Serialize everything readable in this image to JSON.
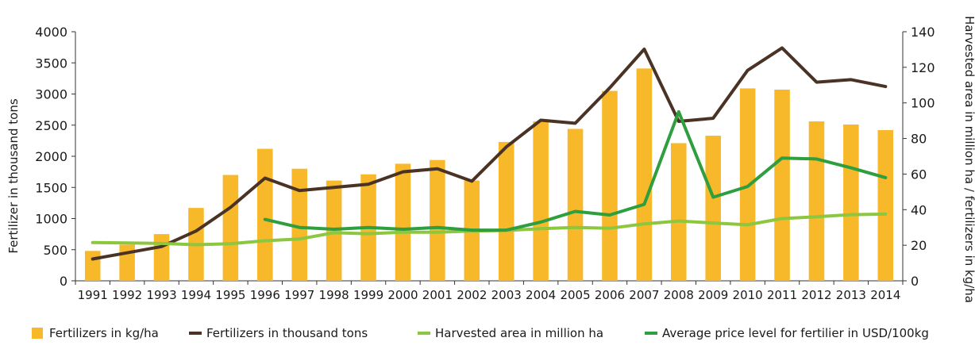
{
  "chart_data": {
    "type": "bar",
    "title": "",
    "xlabel": "",
    "ylabel": "Fertilizer in thousand tons",
    "y2label": "Harvested area in million ha / fertilizers in kg/ha",
    "ylim": [
      0,
      4000
    ],
    "y2lim": [
      0,
      140
    ],
    "yticks": [
      0,
      500,
      1000,
      1500,
      2000,
      2500,
      3000,
      3500,
      4000
    ],
    "y2ticks": [
      0,
      20,
      40,
      60,
      80,
      100,
      120,
      140
    ],
    "grid": false,
    "legend_position": "bottom",
    "categories": [
      "1991",
      "1992",
      "1993",
      "1994",
      "1995",
      "1996",
      "1997",
      "1998",
      "1999",
      "2000",
      "2001",
      "2002",
      "2003",
      "2004",
      "2005",
      "2006",
      "2007",
      "2008",
      "2009",
      "2010",
      "2011",
      "2012",
      "2013",
      "2014"
    ],
    "series": [
      {
        "name": "Fertilizers in kg/ha",
        "type": "bar",
        "axis": "left",
        "color": "#F7B82A",
        "values": [
          480,
          580,
          750,
          1170,
          1700,
          2120,
          1800,
          1610,
          1710,
          1880,
          1940,
          1610,
          2230,
          2560,
          2440,
          3050,
          3410,
          2210,
          2330,
          3090,
          3070,
          2560,
          2510,
          2420
        ]
      },
      {
        "name": "Fertilizers in thousand tons",
        "type": "line",
        "axis": "left",
        "color": "#4A3324",
        "values": [
          350,
          450,
          550,
          800,
          1180,
          1650,
          1450,
          1500,
          1550,
          1750,
          1800,
          1600,
          2150,
          2580,
          2530,
          3100,
          3720,
          2560,
          2610,
          3380,
          3740,
          3190,
          3230,
          3120
        ]
      },
      {
        "name": "Harvested area in million ha",
        "type": "line",
        "axis": "right",
        "color": "#8DC63F",
        "values": [
          21.5,
          21.3,
          21.0,
          20.3,
          20.8,
          22.5,
          23.5,
          27.0,
          26.5,
          27.3,
          27.3,
          28.0,
          28.3,
          29.3,
          30.0,
          29.5,
          32.0,
          33.6,
          32.5,
          31.5,
          35.0,
          36.0,
          37.2,
          37.5
        ]
      },
      {
        "name": "Average price level for fertilier in USD/100kg",
        "type": "line",
        "axis": "right",
        "color": "#2E9E3E",
        "values": [
          null,
          null,
          null,
          null,
          null,
          34.5,
          30.0,
          29.0,
          30.0,
          29.0,
          30.0,
          28.5,
          28.5,
          33.0,
          39.0,
          37.0,
          43.0,
          95.0,
          47.0,
          53.0,
          69.0,
          68.5,
          63.5,
          58.0
        ]
      }
    ]
  }
}
